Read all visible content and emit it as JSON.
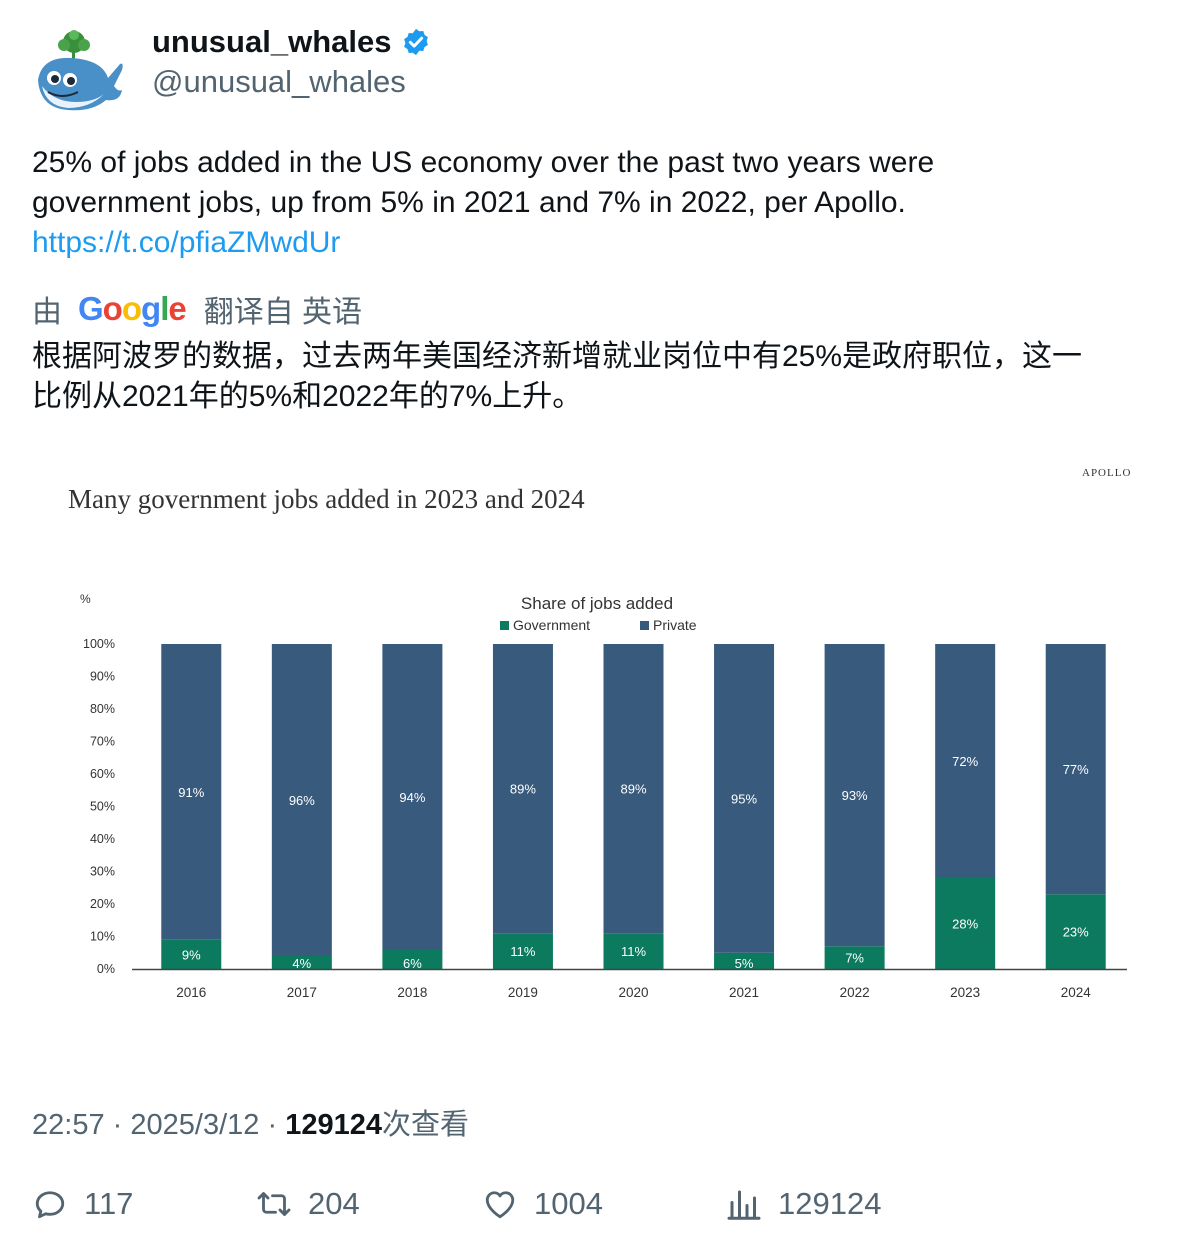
{
  "author": {
    "display_name": "unusual_whales",
    "handle": "@unusual_whales",
    "verified": true,
    "avatar_icon": "whale-avatar-icon"
  },
  "tweet": {
    "text_line1": "25% of jobs added in the US economy over the past two years were",
    "text_line2": "government jobs, up from 5% in 2021 and 7% in 2022, per Apollo.",
    "link": "https://t.co/pfiaZMwdUr"
  },
  "translation": {
    "prefix": "由",
    "provider": "Google",
    "suffix": "翻译自 英语",
    "text_line1": "根据阿波罗的数据，过去两年美国经济新增就业岗位中有25%是政府职位，这一",
    "text_line2": "比例从2021年的5%和2022年的7%上升。"
  },
  "chart_header": {
    "title": "Many government jobs added in 2023 and 2024",
    "brand": "APOLLO"
  },
  "chart_data": {
    "type": "bar",
    "stacked": true,
    "title": "Share of jobs added",
    "ylabel": "%",
    "ylim": [
      0,
      100
    ],
    "yticks": [
      "0%",
      "10%",
      "20%",
      "30%",
      "40%",
      "50%",
      "60%",
      "70%",
      "80%",
      "90%",
      "100%"
    ],
    "categories": [
      "2016",
      "2017",
      "2018",
      "2019",
      "2020",
      "2021",
      "2022",
      "2023",
      "2024"
    ],
    "series": [
      {
        "name": "Government",
        "color": "#0b7a5e",
        "values": [
          9,
          4,
          6,
          11,
          11,
          5,
          7,
          28,
          23
        ]
      },
      {
        "name": "Private",
        "color": "#385a7c",
        "values": [
          91,
          96,
          94,
          89,
          89,
          95,
          93,
          72,
          77
        ]
      }
    ],
    "legend_position": "top-center",
    "grid": false
  },
  "meta": {
    "time": "22:57",
    "separator": "·",
    "date": "2025/3/12",
    "views_count": "129124",
    "views_label": "次查看"
  },
  "actions": {
    "replies": "117",
    "retweets": "204",
    "likes": "1004",
    "views": "129124"
  }
}
